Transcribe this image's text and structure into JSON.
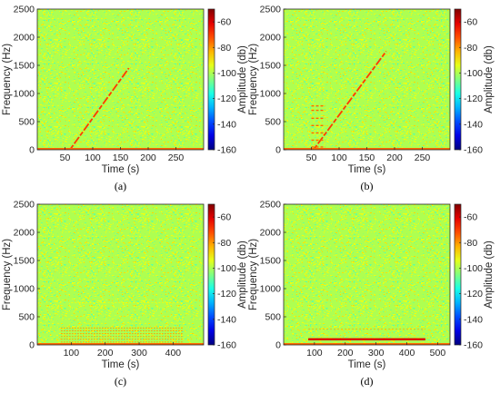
{
  "figure": {
    "colormap": "jet",
    "background_level_db": -100,
    "colorbar": {
      "label": "Amplitude (db)",
      "range": [
        -160,
        -50
      ],
      "ticks": [
        -60,
        -80,
        -100,
        -120,
        -140,
        -160
      ]
    }
  },
  "chart_data": [
    {
      "type": "heatmap",
      "panel_label": "(a)",
      "xlabel": "Time (s)",
      "ylabel": "Frequency (Hz)",
      "xlim": [
        0,
        300
      ],
      "ylim": [
        0,
        2500
      ],
      "xticks": [
        50,
        100,
        150,
        200,
        250
      ],
      "yticks": [
        0,
        500,
        1000,
        1500,
        2000,
        2500
      ],
      "features": [
        {
          "kind": "chirp",
          "t": [
            60,
            165
          ],
          "f": [
            0,
            1450
          ],
          "db": -70
        },
        {
          "kind": "baseline",
          "t": [
            0,
            300
          ],
          "f": 0,
          "db": -75
        }
      ]
    },
    {
      "type": "heatmap",
      "panel_label": "(b)",
      "xlabel": "Time (s)",
      "ylabel": "Frequency (Hz)",
      "xlim": [
        0,
        300
      ],
      "ylim": [
        0,
        2500
      ],
      "xticks": [
        50,
        100,
        150,
        200,
        250
      ],
      "yticks": [
        0,
        500,
        1000,
        1500,
        2000,
        2500
      ],
      "features": [
        {
          "kind": "chirp",
          "t": [
            55,
            185
          ],
          "f": [
            0,
            1750
          ],
          "db": -70
        },
        {
          "kind": "tone_burst",
          "t": [
            50,
            75
          ],
          "f": [
            50,
            170,
            300,
            430,
            560,
            700,
            780
          ],
          "db": -75
        },
        {
          "kind": "baseline",
          "t": [
            0,
            300
          ],
          "f": 0,
          "db": -75
        }
      ]
    },
    {
      "type": "heatmap",
      "panel_label": "(c)",
      "xlabel": "Time (s)",
      "ylabel": "Frequency (Hz)",
      "xlim": [
        0,
        490
      ],
      "ylim": [
        0,
        2500
      ],
      "xticks": [
        100,
        200,
        300,
        400
      ],
      "yticks": [
        0,
        500,
        1000,
        1500,
        2000,
        2500
      ],
      "features": [
        {
          "kind": "harmonics",
          "t": [
            70,
            430
          ],
          "f": [
            50,
            100,
            150,
            200,
            250,
            300
          ],
          "db": -80
        },
        {
          "kind": "faint_line",
          "t": [
            100,
            430
          ],
          "f": 750,
          "db": -92
        },
        {
          "kind": "baseline",
          "t": [
            0,
            490
          ],
          "f": 0,
          "db": -75
        }
      ]
    },
    {
      "type": "heatmap",
      "panel_label": "(d)",
      "xlabel": "Time (s)",
      "ylabel": "Frequency (Hz)",
      "xlim": [
        0,
        540
      ],
      "ylim": [
        0,
        2500
      ],
      "xticks": [
        100,
        200,
        300,
        400,
        500
      ],
      "yticks": [
        0,
        500,
        1000,
        1500,
        2000,
        2500
      ],
      "features": [
        {
          "kind": "tone",
          "t": [
            80,
            460
          ],
          "f": 100,
          "db": -60
        },
        {
          "kind": "faint_line",
          "t": [
            80,
            460
          ],
          "f": 280,
          "db": -82
        },
        {
          "kind": "baseline",
          "t": [
            0,
            540
          ],
          "f": 0,
          "db": -75
        }
      ]
    }
  ]
}
